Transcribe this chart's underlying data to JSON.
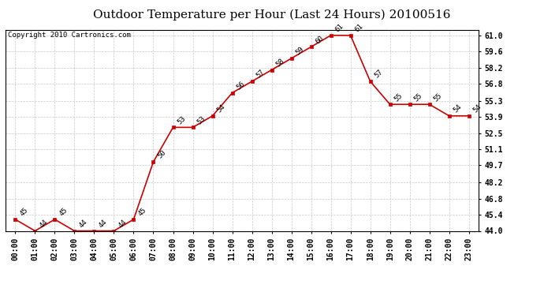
{
  "title": "Outdoor Temperature per Hour (Last 24 Hours) 20100516",
  "copyright": "Copyright 2010 Cartronics.com",
  "hours": [
    "00:00",
    "01:00",
    "02:00",
    "03:00",
    "04:00",
    "05:00",
    "06:00",
    "07:00",
    "08:00",
    "09:00",
    "10:00",
    "11:00",
    "12:00",
    "13:00",
    "14:00",
    "15:00",
    "16:00",
    "17:00",
    "18:00",
    "19:00",
    "20:00",
    "21:00",
    "22:00",
    "23:00"
  ],
  "temps": [
    45,
    44,
    45,
    44,
    44,
    44,
    45,
    50,
    53,
    53,
    54,
    56,
    57,
    58,
    59,
    60,
    61,
    61,
    57,
    55,
    55,
    55,
    54,
    54
  ],
  "ylim_min": 44.0,
  "ylim_max": 61.0,
  "yticks": [
    44.0,
    45.4,
    46.8,
    48.2,
    49.7,
    51.1,
    52.5,
    53.9,
    55.3,
    56.8,
    58.2,
    59.6,
    61.0
  ],
  "line_color": "#cc0000",
  "marker_color": "#cc0000",
  "bg_color": "#ffffff",
  "grid_color": "#bbbbbb",
  "title_fontsize": 11,
  "copyright_fontsize": 6.5,
  "tick_fontsize": 7,
  "annot_fontsize": 6.5
}
